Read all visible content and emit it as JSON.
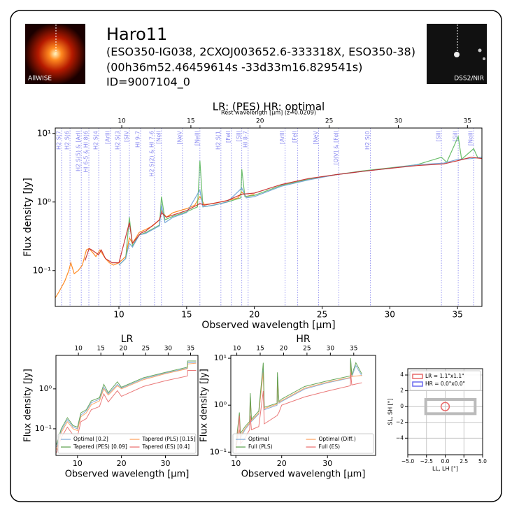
{
  "header": {
    "title": "Haro11",
    "lines": [
      "(ESO350-IG038, 2CXOJ003652.6-333318X, ESO350-38)",
      "(00h36m52.46459614s -33d33m16.829541s)",
      "ID=9007104_0"
    ],
    "images": [
      {
        "label": "AllWISE"
      },
      {
        "label": "DSS2/NIR"
      }
    ]
  },
  "chart_data": [
    {
      "type": "line",
      "title": "LR:  (PES) HR: optimal",
      "x_label": "Observed wavelength [μm]",
      "y_label": "Flux density [Jy]",
      "top_label": "Rest wavelength [μm] (z=0.0209)",
      "redshift": 0.0209,
      "log_y": true,
      "xlim": [
        5.3,
        36.8
      ],
      "ylim": [
        0.03,
        12
      ],
      "xticks": [
        10,
        15,
        20,
        25,
        30,
        35
      ],
      "top_ticks": [
        10,
        15,
        20,
        25,
        30,
        35
      ],
      "yticks": [
        {
          "value": 0.1,
          "label": "10⁻¹"
        },
        {
          "value": 1,
          "label": "10⁰"
        },
        {
          "value": 10,
          "label": "10¹"
        }
      ],
      "lines": [
        {
          "label": "H2 S(7",
          "x": 5.77
        },
        {
          "label": "H2 S(6",
          "x": 6.39
        },
        {
          "label": "H2 S(5) & [ArII",
          "x": 7.22
        },
        {
          "label": "HI 6-5 & HI 8(6",
          "x": 7.78
        },
        {
          "label": "H2 S(4",
          "x": 8.51
        },
        {
          "label": "[ArIII",
          "x": 9.38
        },
        {
          "label": "H2 S(3",
          "x": 10.1
        },
        {
          "label": "[SIV",
          "x": 10.77
        },
        {
          "label": "HI 9-7",
          "x": 11.6
        },
        {
          "label": "H2 S(2) & HI 7-6",
          "x": 12.63
        },
        {
          "label": "[NeII",
          "x": 13.14
        },
        {
          "label": "[NeV",
          "x": 14.69
        },
        {
          "label": "[NeIII",
          "x": 15.98
        },
        {
          "label": "H2 S(1",
          "x": 17.53
        },
        {
          "label": "[FeII",
          "x": 18.3
        },
        {
          "label": "[SIII",
          "x": 19.07
        },
        {
          "label": "HI 8-7",
          "x": 19.54
        },
        {
          "label": "[ArIII",
          "x": 22.27
        },
        {
          "label": "[FeII",
          "x": 23.2
        },
        {
          "label": "[NeV",
          "x": 24.74
        },
        {
          "label": "[OIV] & [FeII",
          "x": 26.24
        },
        {
          "label": "H2 S(0",
          "x": 28.56
        },
        {
          "label": "[SIII",
          "x": 33.81
        },
        {
          "label": "[SiII",
          "x": 35.05
        },
        {
          "label": "[NeIII",
          "x": 36.19
        }
      ],
      "series": [
        {
          "color": "#ff7f0e",
          "x": [
            5.3,
            5.6,
            6.0,
            6.3,
            6.45,
            6.7,
            7.0,
            7.3,
            7.6,
            7.8,
            8.0,
            8.3,
            8.6,
            9.0,
            9.3,
            9.6,
            10.0,
            10.5,
            10.77,
            11.0,
            11.5,
            12.0,
            12.5,
            13.0,
            13.14,
            13.5,
            14.0,
            15.0,
            15.6,
            15.98,
            16.3,
            17.0,
            18.0,
            18.8,
            19.07,
            19.4,
            20.0
          ],
          "values": [
            0.04,
            0.05,
            0.07,
            0.1,
            0.13,
            0.09,
            0.1,
            0.12,
            0.2,
            0.21,
            0.19,
            0.16,
            0.2,
            0.15,
            0.13,
            0.12,
            0.13,
            0.16,
            0.3,
            0.25,
            0.36,
            0.4,
            0.45,
            0.55,
            0.75,
            0.6,
            0.7,
            0.8,
            0.9,
            1.2,
            0.92,
            0.95,
            1.05,
            1.15,
            1.4,
            1.2,
            1.3
          ]
        },
        {
          "color": "#5cb85c",
          "x": [
            10.0,
            10.5,
            10.77,
            11.0,
            11.5,
            12.0,
            13.0,
            13.14,
            13.4,
            14.0,
            15.0,
            15.8,
            15.98,
            16.2,
            17.0,
            18.0,
            19.0,
            19.07,
            19.3,
            20.0,
            22.0,
            24.0,
            26.0,
            28.0,
            30.0,
            32.0,
            33.81,
            34.2,
            35.05,
            35.3,
            36.19,
            36.5,
            36.8
          ],
          "values": [
            0.12,
            0.15,
            0.6,
            0.23,
            0.33,
            0.36,
            0.46,
            1.2,
            0.55,
            0.62,
            0.72,
            0.85,
            4.0,
            0.85,
            0.9,
            1.0,
            1.15,
            3.0,
            1.2,
            1.25,
            1.75,
            2.15,
            2.5,
            2.85,
            3.15,
            3.5,
            4.5,
            3.8,
            9.0,
            4.2,
            6.0,
            4.4,
            4.5
          ]
        },
        {
          "color": "#6a9fd4",
          "x": [
            10.0,
            10.5,
            10.77,
            11.0,
            11.5,
            12.0,
            13.0,
            13.14,
            13.4,
            14.0,
            15.0,
            15.98,
            16.2,
            17.0,
            18.0,
            19.07,
            19.4,
            20.0,
            22.0,
            24.0,
            26.0,
            28.0,
            30.0,
            32.0,
            34.0,
            35.05,
            36.0,
            36.8
          ],
          "values": [
            0.12,
            0.15,
            0.25,
            0.22,
            0.33,
            0.35,
            0.45,
            0.9,
            0.5,
            0.6,
            0.7,
            1.5,
            0.85,
            0.9,
            1.0,
            1.6,
            1.15,
            1.2,
            1.7,
            2.1,
            2.5,
            2.8,
            3.1,
            3.5,
            3.7,
            4.2,
            4.3,
            4.5
          ]
        },
        {
          "color": "#c62828",
          "x": [
            7.5,
            7.8,
            8.0,
            8.5,
            8.7,
            9.0,
            9.5,
            10.0,
            10.77,
            11.0,
            11.6,
            12.0,
            13.0,
            13.14,
            13.5,
            15.0,
            15.98,
            16.3,
            18.0,
            19.07,
            20.0,
            22.0,
            24.0,
            26.0,
            28.0,
            30.0,
            32.0,
            34.0,
            35.0,
            36.0,
            36.8
          ],
          "values": [
            0.14,
            0.21,
            0.2,
            0.17,
            0.2,
            0.15,
            0.13,
            0.13,
            0.5,
            0.25,
            0.35,
            0.38,
            0.55,
            0.7,
            0.6,
            0.75,
            0.95,
            0.9,
            1.05,
            1.3,
            1.35,
            1.8,
            2.2,
            2.5,
            2.8,
            3.1,
            3.4,
            3.6,
            4.0,
            4.5,
            4.3
          ]
        }
      ]
    },
    {
      "type": "line",
      "title": "LR",
      "x_label": "Observed wavelength [μm]",
      "y_label": "Flux density [Jy]",
      "redshift": 0.0209,
      "log_y": true,
      "xlim": [
        5.1,
        37.4
      ],
      "ylim": [
        0.0215,
        6.9
      ],
      "xticks": [
        10,
        20,
        30
      ],
      "top_ticks": [
        10,
        15,
        20,
        25,
        30,
        35
      ],
      "yticks": [
        {
          "value": 0.1,
          "label": "10⁻¹"
        },
        {
          "value": 1,
          "label": "10⁰"
        }
      ],
      "series": [
        {
          "name": "Optimal [0.2]",
          "color": "#7aa6d6",
          "x": [
            5.2,
            6.3,
            7.7,
            9.0,
            10.0,
            10.77,
            12.0,
            13.14,
            15.0,
            15.98,
            17.0,
            19.07,
            20.0,
            25.0,
            30.0,
            35.0,
            35.05,
            37.0
          ],
          "values": [
            0.035,
            0.09,
            0.17,
            0.11,
            0.1,
            0.22,
            0.28,
            0.45,
            0.55,
            1.1,
            0.75,
            1.3,
            1.05,
            1.8,
            2.5,
            3.3,
            4.5,
            4.6
          ]
        },
        {
          "name": "Tapered (PLS) [0.15]",
          "color": "#ff9f5a",
          "x": [
            5.2,
            6.3,
            7.7,
            9.0,
            10.0,
            10.77,
            12.0,
            13.14,
            15.0,
            15.98,
            17.0,
            19.07,
            20.0,
            25.0,
            30.0,
            35.0,
            35.05,
            37.0
          ],
          "values": [
            0.03,
            0.08,
            0.15,
            0.1,
            0.09,
            0.2,
            0.25,
            0.4,
            0.5,
            1.0,
            0.7,
            1.2,
            1.0,
            1.7,
            2.4,
            3.2,
            4.2,
            4.4
          ]
        },
        {
          "name": "Tapered (PES) [0.09]",
          "color": "#5a9e4a",
          "x": [
            5.2,
            6.3,
            7.7,
            9.0,
            10.0,
            10.77,
            12.0,
            13.14,
            15.0,
            15.98,
            17.0,
            19.07,
            20.0,
            25.0,
            30.0,
            35.0,
            35.05,
            37.0
          ],
          "values": [
            0.04,
            0.1,
            0.19,
            0.12,
            0.11,
            0.25,
            0.3,
            0.5,
            0.6,
            1.3,
            0.8,
            1.5,
            1.1,
            1.9,
            2.6,
            3.5,
            5.0,
            5.0
          ]
        },
        {
          "name": "Tapered (ES) [0.4]",
          "color": "#e86a6a",
          "x": [
            5.2,
            6.3,
            7.7,
            9.0,
            10.0,
            10.77,
            12.0,
            13.14,
            15.0,
            15.98,
            17.0,
            19.07,
            20.0,
            25.0,
            30.0,
            35.0,
            35.05,
            37.0
          ],
          "values": [
            0.025,
            0.06,
            0.11,
            0.07,
            0.065,
            0.15,
            0.18,
            0.3,
            0.36,
            0.75,
            0.47,
            0.9,
            0.65,
            1.15,
            1.6,
            2.1,
            2.9,
            2.9
          ]
        }
      ],
      "legend": "lower center"
    },
    {
      "type": "line",
      "title": "HR",
      "x_label": "Observed wavelength [μm]",
      "y_label": "Flux density [Jy]",
      "redshift": 0.0209,
      "log_y": true,
      "xlim": [
        8.9,
        40.5
      ],
      "ylim": [
        0.085,
        11.5
      ],
      "xticks": [
        10,
        20,
        30
      ],
      "top_ticks": [
        10,
        15,
        20,
        25,
        30,
        35
      ],
      "yticks": [
        {
          "value": 0.1,
          "label": "10⁻¹"
        },
        {
          "value": 1,
          "label": "10⁰"
        },
        {
          "value": 10,
          "label": "10¹"
        }
      ],
      "series": [
        {
          "name": "Optimal",
          "color": "#7aa6d6",
          "x": [
            10.0,
            10.77,
            11.0,
            12.0,
            13.0,
            13.14,
            13.4,
            15.0,
            15.98,
            16.2,
            19.0,
            19.07,
            19.4,
            20.0,
            25.0,
            30.0,
            35.0,
            35.05,
            35.3,
            36.19,
            37.5
          ],
          "values": [
            0.12,
            0.3,
            0.2,
            0.3,
            0.4,
            1.5,
            0.45,
            0.65,
            6.0,
            0.8,
            1.0,
            4.0,
            1.1,
            1.2,
            2.2,
            3.0,
            3.8,
            9.0,
            4.0,
            7.0,
            4.2
          ]
        },
        {
          "name": "Optimal (Diff.)",
          "color": "#ff9f5a",
          "x": [
            10.0,
            10.77,
            11.0,
            12.0,
            13.0,
            13.14,
            13.4,
            15.0,
            15.98,
            16.2,
            19.0,
            19.07,
            19.4,
            20.0,
            25.0,
            30.0,
            35.0,
            35.05,
            35.3,
            37.5
          ],
          "values": [
            0.13,
            0.3,
            0.22,
            0.32,
            0.42,
            1.4,
            0.47,
            0.68,
            5.0,
            0.85,
            1.05,
            3.5,
            1.15,
            1.25,
            2.3,
            3.1,
            3.9,
            8.0,
            4.1,
            4.3
          ]
        },
        {
          "name": "Full (PLS)",
          "color": "#5a9e4a",
          "x": [
            10.0,
            10.77,
            11.0,
            12.0,
            13.0,
            13.14,
            13.4,
            15.0,
            15.98,
            16.2,
            19.0,
            19.07,
            19.4,
            20.0,
            25.0,
            30.0,
            35.0,
            35.05,
            35.3,
            36.19,
            37.5
          ],
          "values": [
            0.14,
            0.7,
            0.25,
            0.35,
            0.45,
            1.8,
            0.5,
            0.75,
            8.0,
            0.9,
            1.1,
            5.0,
            1.2,
            1.35,
            2.5,
            3.3,
            4.2,
            10.0,
            4.4,
            8.0,
            4.6
          ]
        },
        {
          "name": "Full (ES)",
          "color": "#e86a6a",
          "x": [
            10.0,
            10.77,
            11.0,
            12.0,
            13.0,
            13.14,
            13.4,
            15.0,
            15.98,
            16.2,
            19.0,
            19.4,
            20.0,
            25.0,
            30.0,
            35.0,
            35.05,
            35.3,
            37.5
          ],
          "values": [
            0.1,
            0.6,
            0.15,
            0.2,
            0.3,
            0.6,
            0.3,
            0.35,
            2.0,
            0.4,
            0.6,
            0.7,
            1.0,
            1.5,
            2.0,
            2.6,
            5.0,
            2.7,
            3.0
          ]
        }
      ],
      "legend": "lower center"
    },
    {
      "type": "aperture",
      "x_label": "LL, LH [\"]",
      "y_label": "SL, SH [\"]",
      "xlim": [
        -5,
        5
      ],
      "ylim": [
        -6.1,
        4.8
      ],
      "grid": true,
      "xticks": [
        {
          "value": -5,
          "label": "−5.0"
        },
        {
          "value": -2.5,
          "label": "−2.5"
        },
        {
          "value": 0,
          "label": "0.0"
        },
        {
          "value": 2.5,
          "label": "2.5"
        },
        {
          "value": 5,
          "label": "5.0"
        }
      ],
      "yticks": [
        {
          "value": -4,
          "label": "−4"
        },
        {
          "value": -2,
          "label": "−2"
        },
        0,
        2,
        4
      ],
      "footprint": {
        "color": "#bbbbbb",
        "x": [
          -2.6,
          4.0
        ],
        "y": [
          -0.9,
          0.9
        ]
      },
      "series": [
        {
          "name": "LR = 1.1\"x1.1\"",
          "color": "#e86a6a",
          "cx": 0,
          "cy": 0,
          "r": 0.55
        },
        {
          "name": "HR = 0.0\"x0.0\"",
          "color": "#6a6aee",
          "cx": 0,
          "cy": 0,
          "r": 0
        }
      ],
      "legend": "upper center"
    }
  ]
}
